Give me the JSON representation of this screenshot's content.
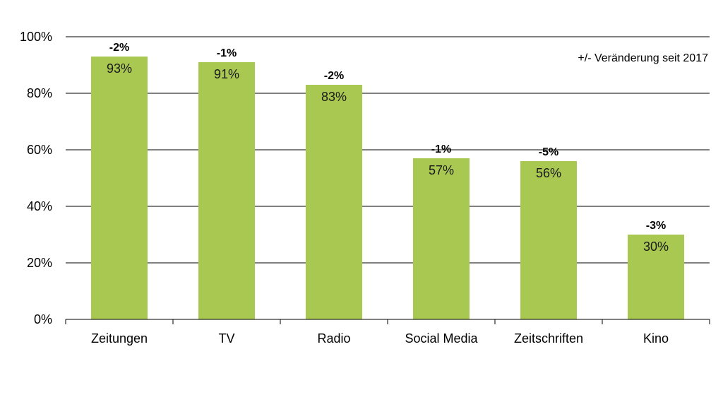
{
  "chart_data": {
    "type": "bar",
    "categories": [
      "Zeitungen",
      "TV",
      "Radio",
      "Social Media",
      "Zeitschriften",
      "Kino"
    ],
    "values": [
      93,
      91,
      83,
      57,
      56,
      30
    ],
    "value_labels": [
      "93%",
      "91%",
      "83%",
      "57%",
      "56%",
      "30%"
    ],
    "change_labels": [
      "-2%",
      "-1%",
      "-2%",
      "-1%",
      "-5%",
      "-3%"
    ],
    "yticks": [
      "0%",
      "20%",
      "40%",
      "60%",
      "80%",
      "100%"
    ],
    "ylim": [
      0,
      100
    ],
    "grid": true,
    "annotation": "+/- Veränderung seit 2017",
    "bar_color": "#a8c852",
    "grid_color": "#000000"
  }
}
